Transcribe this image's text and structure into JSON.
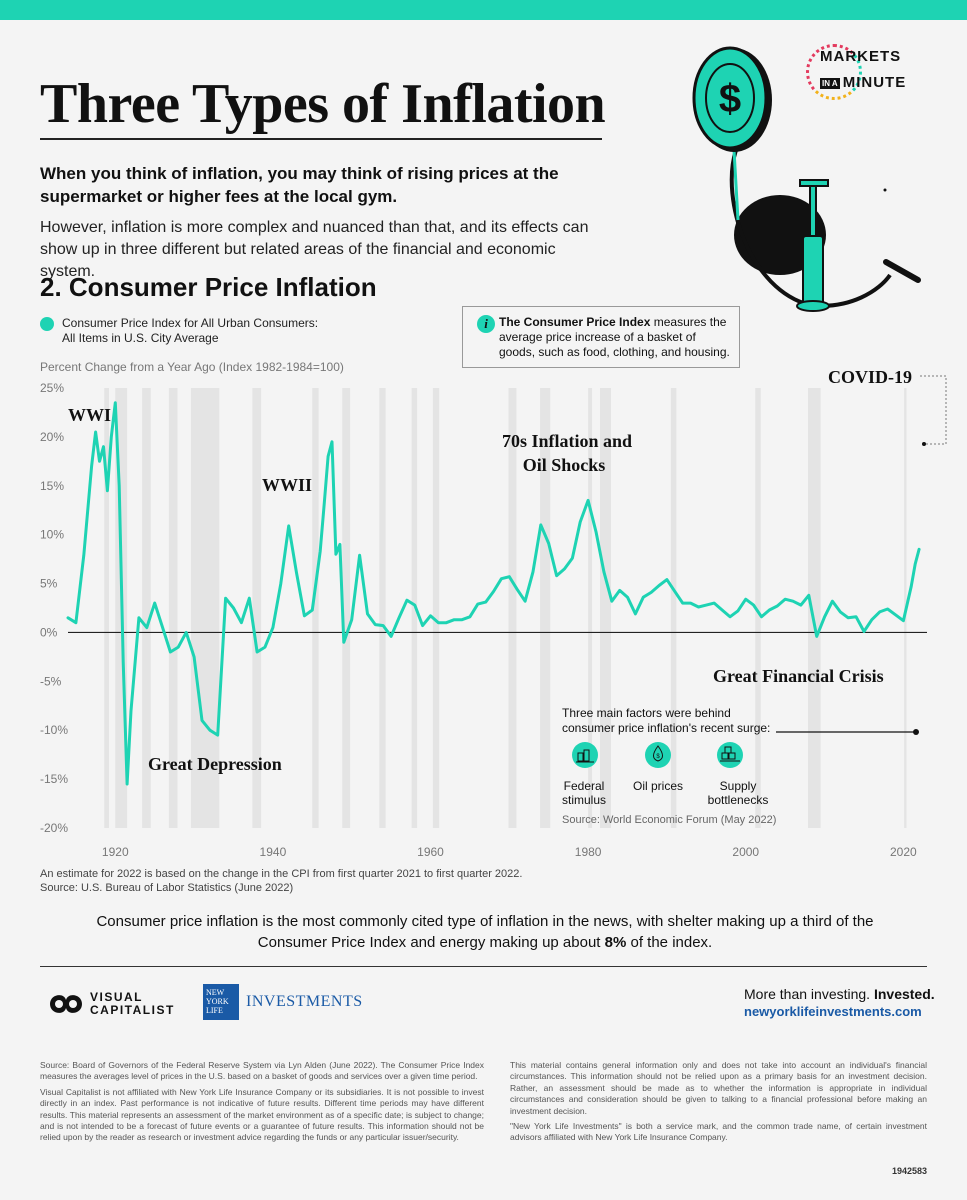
{
  "header": {
    "title": "Three Types of Inflation",
    "intro_bold": "When you think of inflation, you may think of rising prices at the supermarket or higher fees at the local gym.",
    "intro": "However, inflation is more complex and nuanced than that, and its effects can show up in three different but related areas of the financial and economic system.",
    "brand_line1": "MARKETS",
    "brand_line2_small": "IN A",
    "brand_line2": "MINUTE"
  },
  "section": {
    "title": "2. Consumer Price Inflation",
    "legend_line1": "Consumer Price Index for All Urban Consumers:",
    "legend_line2": "All Items in U.S. City Average",
    "info_bold": "The Consumer Price Index",
    "info_rest": " measures the average price increase of a basket of goods, such as food, clothing, and housing."
  },
  "chart_data": {
    "type": "line",
    "subtitle": "Percent Change from a Year Ago (Index 1982-1984=100)",
    "ylim": [
      -20,
      25
    ],
    "yticks": [
      "25%",
      "20%",
      "15%",
      "10%",
      "5%",
      "0%",
      "-5%",
      "-10%",
      "-15%",
      "-20%"
    ],
    "ytick_values": [
      25,
      20,
      15,
      10,
      5,
      0,
      -5,
      -10,
      -15,
      -20
    ],
    "xlim": [
      1914,
      2023
    ],
    "xticks": [
      "1920",
      "1940",
      "1960",
      "1980",
      "2000",
      "2020"
    ],
    "xtick_values": [
      1920,
      1940,
      1960,
      1980,
      2000,
      2020
    ],
    "series": [
      {
        "name": "Consumer Price Index for All Urban Consumers",
        "color": "#1ed3b3",
        "x": [
          1914,
          1915,
          1916,
          1917,
          1917.5,
          1918,
          1918.5,
          1919,
          1919.5,
          1920,
          1920.5,
          1921,
          1921.5,
          1922,
          1923,
          1924,
          1925,
          1926,
          1927,
          1928,
          1929,
          1930,
          1931,
          1932,
          1933,
          1934,
          1935,
          1936,
          1937,
          1938,
          1939,
          1940,
          1941,
          1942,
          1943,
          1944,
          1945,
          1946,
          1946.5,
          1947,
          1947.5,
          1948,
          1948.5,
          1949,
          1950,
          1951,
          1952,
          1953,
          1954,
          1955,
          1956,
          1957,
          1958,
          1959,
          1960,
          1961,
          1962,
          1963,
          1964,
          1965,
          1966,
          1967,
          1968,
          1969,
          1970,
          1971,
          1972,
          1973,
          1974,
          1975,
          1976,
          1977,
          1978,
          1979,
          1980,
          1981,
          1982,
          1983,
          1984,
          1985,
          1986,
          1987,
          1988,
          1989,
          1990,
          1991,
          1992,
          1993,
          1994,
          1995,
          1996,
          1997,
          1998,
          1999,
          2000,
          2001,
          2002,
          2003,
          2004,
          2005,
          2006,
          2007,
          2008,
          2009,
          2010,
          2011,
          2012,
          2013,
          2014,
          2015,
          2016,
          2017,
          2018,
          2019,
          2020,
          2021,
          2021.5,
          2022
        ],
        "values": [
          1.5,
          1.0,
          7.9,
          17.0,
          20.5,
          17.5,
          19.0,
          14.5,
          20.0,
          23.5,
          15.0,
          -3.0,
          -15.5,
          -8.0,
          1.5,
          0.5,
          3.0,
          0.5,
          -2.0,
          -1.5,
          0.0,
          -2.5,
          -9.0,
          -10.0,
          -10.5,
          3.5,
          2.5,
          1.0,
          3.5,
          -2.0,
          -1.5,
          0.5,
          5.0,
          10.9,
          6.1,
          1.7,
          2.3,
          8.3,
          13.0,
          18.0,
          19.5,
          8.0,
          9.0,
          -1.0,
          1.3,
          7.9,
          1.9,
          0.8,
          0.7,
          -0.4,
          1.5,
          3.3,
          2.8,
          0.7,
          1.7,
          1.0,
          1.0,
          1.3,
          1.3,
          1.6,
          2.9,
          3.1,
          4.2,
          5.5,
          5.7,
          4.4,
          3.2,
          6.2,
          11.0,
          9.1,
          5.8,
          6.5,
          7.6,
          11.3,
          13.5,
          10.3,
          6.2,
          3.2,
          4.3,
          3.6,
          1.9,
          3.6,
          4.1,
          4.8,
          5.4,
          4.2,
          3.0,
          3.0,
          2.6,
          2.8,
          3.0,
          2.3,
          1.6,
          2.2,
          3.4,
          2.8,
          1.6,
          2.3,
          2.7,
          3.4,
          3.2,
          2.8,
          3.8,
          -0.4,
          1.6,
          3.2,
          2.1,
          1.5,
          1.6,
          0.1,
          1.3,
          2.1,
          2.4,
          1.8,
          1.2,
          4.7,
          7.0,
          8.5
        ]
      }
    ],
    "annotations": [
      "WWI",
      "Great Depression",
      "WWII",
      "70s Inflation and",
      "Oil Shocks",
      "Great Financial Crisis",
      "COVID-19"
    ],
    "factors_title_line1": "Three main factors were behind",
    "factors_title_line2": "consumer price inflation's recent surge:",
    "factors": [
      {
        "line1": "Federal",
        "line2": "stimulus",
        "icon": "stimulus-icon"
      },
      {
        "line1": "Oil prices",
        "line2": "",
        "icon": "oil-icon"
      },
      {
        "line1": "Supply",
        "line2": "bottlenecks",
        "icon": "supply-icon"
      }
    ],
    "factors_source": "Source: World Economic Forum (May 2022)",
    "colors": {
      "line": "#1ed3b3",
      "recession": "#e4e4e4",
      "zero": "#222222"
    }
  },
  "footnotes": {
    "line1": "An estimate for 2022 is based on the change in the CPI from first quarter 2021 to first quarter 2022.",
    "line2": "Source: U.S. Bureau of Labor Statistics (June 2022)"
  },
  "summary": {
    "text_before": "Consumer price inflation is the most commonly cited type of inflation in the news, with shelter making up a third of the Consumer Price Index and energy making up about ",
    "bold": "8%",
    "text_after": " of the index."
  },
  "footer": {
    "vc_line1": "VISUAL",
    "vc_line2": "CAPITALIST",
    "nyl_box": "NEW YORK LIFE",
    "nyl_investments": "INVESTMENTS",
    "tagline_plain": "More than investing. ",
    "tagline_bold": "Invested.",
    "url": "newyorklifeinvestments.com"
  },
  "disclaimer": {
    "left_p1": "Source: Board of Governors of the Federal Reserve System via Lyn Alden (June 2022). The Consumer Price Index measures the averages level of prices in the U.S. based on a basket of goods and services over a given time period.",
    "left_p2": "Visual Capitalist is not affiliated with New York Life Insurance Company or its subsidiaries. It is not possible to invest directly in an index. Past performance is not indicative of future results. Different time periods may have different results. This material represents an assessment of the market environment as of a specific date; is subject to change; and is not intended to be a forecast of future events or a guarantee of future results. This information should not be relied upon by the reader as research or investment advice regarding the funds or any particular issuer/security.",
    "right_p1": "This material contains general information only and does not take into account an individual's financial circumstances. This information should not be relied upon as a primary basis for an investment decision. Rather, an assessment should be made as to whether the information is appropriate in individual circumstances and consideration should be given to talking to a financial professional before making an investment decision.",
    "right_p2": "\"New York Life Investments\" is both a service mark, and the common trade name, of certain investment advisors affiliated with New York Life Insurance Company.",
    "code": "1942583"
  }
}
